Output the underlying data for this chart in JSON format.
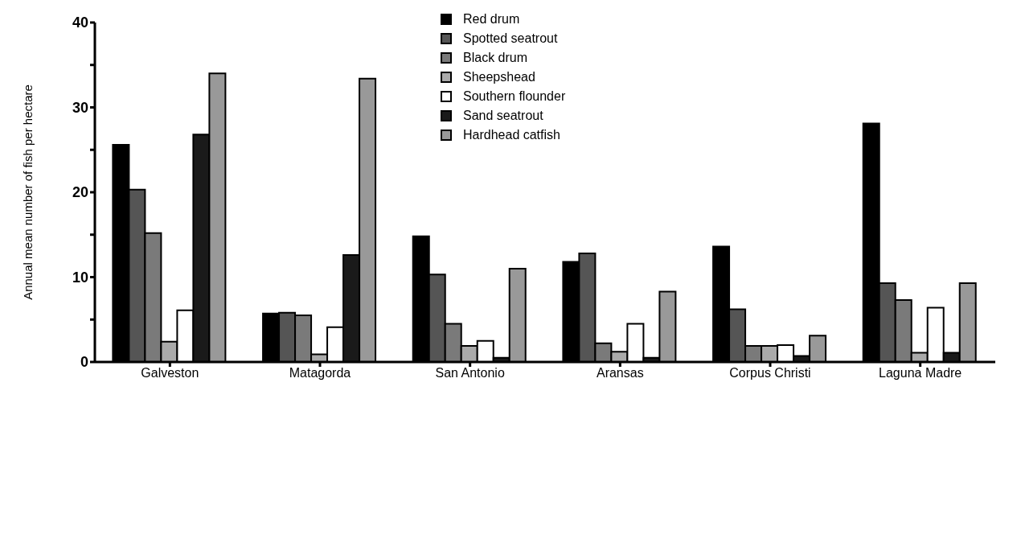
{
  "chart_data": {
    "type": "bar",
    "ylabel": "Annual mean number of fish per hectare",
    "categories": [
      "Galveston",
      "Matagorda",
      "San Antonio",
      "Aransas",
      "Corpus Christi",
      "Laguna Madre"
    ],
    "series": [
      {
        "name": "Red drum",
        "color": "#000000",
        "values": [
          25.6,
          5.7,
          14.8,
          11.8,
          13.6,
          28.1
        ]
      },
      {
        "name": "Spotted seatrout",
        "color": "#555555",
        "values": [
          20.3,
          5.8,
          10.3,
          12.8,
          6.2,
          9.3
        ]
      },
      {
        "name": "Black drum",
        "color": "#7a7a7a",
        "values": [
          15.2,
          5.5,
          4.5,
          2.2,
          1.9,
          7.3
        ]
      },
      {
        "name": "Sheepshead",
        "color": "#aaaaaa",
        "values": [
          2.4,
          0.9,
          1.9,
          1.2,
          1.9,
          1.1
        ]
      },
      {
        "name": "Southern flounder",
        "color": "#ffffff",
        "values": [
          6.1,
          4.1,
          2.5,
          4.5,
          2.0,
          6.4
        ]
      },
      {
        "name": "Sand seatrout",
        "color": "#1a1a1a",
        "values": [
          26.8,
          12.6,
          0.5,
          0.5,
          0.7,
          1.1
        ]
      },
      {
        "name": "Hardhead catfish",
        "color": "#999999",
        "values": [
          34.0,
          33.4,
          11.0,
          8.3,
          3.1,
          9.3
        ]
      }
    ],
    "ylim": [
      0,
      40
    ],
    "yticks": [
      0,
      {
        "value": 5,
        "label": null
      },
      10,
      {
        "value": 15,
        "label": null
      },
      20,
      {
        "value": 25,
        "label": null
      },
      30,
      {
        "value": 35,
        "label": null
      },
      40
    ],
    "legend": "top"
  }
}
